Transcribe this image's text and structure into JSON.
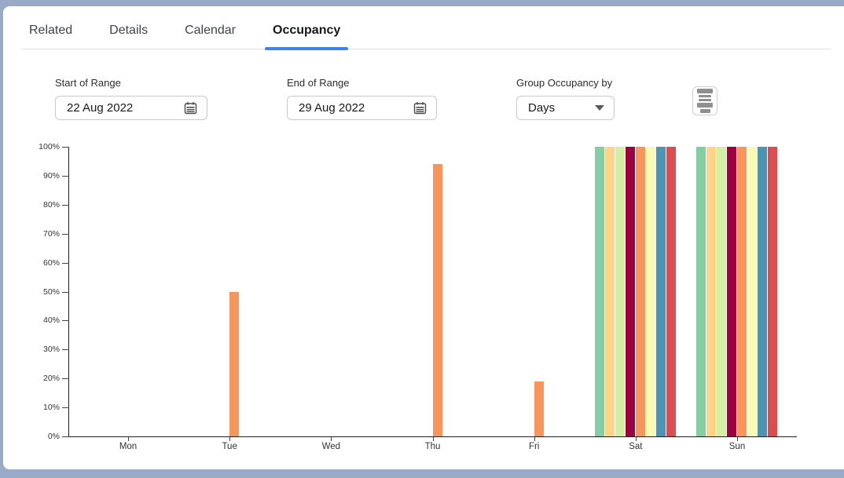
{
  "tabs": [
    {
      "label": "Related",
      "active": false
    },
    {
      "label": "Details",
      "active": false
    },
    {
      "label": "Calendar",
      "active": false
    },
    {
      "label": "Occupancy",
      "active": true
    }
  ],
  "filters": {
    "start": {
      "label": "Start of Range",
      "value": "22 Aug 2022"
    },
    "end": {
      "label": "End of Range",
      "value": "29 Aug 2022"
    },
    "group": {
      "label": "Group Occupancy by",
      "value": "Days"
    }
  },
  "icons": {
    "start_field": "calendar-icon",
    "end_field": "calendar-icon",
    "group_field": "caret-down-icon",
    "chart_menu": "table-list-icon"
  },
  "colors": {
    "background": "#98aac7",
    "active_tab_underline": "#3d82e6",
    "axis": "#1f1f1f"
  },
  "chart_data": {
    "type": "bar",
    "title": "",
    "xlabel": "",
    "ylabel": "",
    "categories": [
      "Mon",
      "Tue",
      "Wed",
      "Thu",
      "Fri",
      "Sat",
      "Sun"
    ],
    "ylim": [
      0,
      100
    ],
    "y_tick_step": 10,
    "y_tick_suffix": "%",
    "grid": false,
    "legend_position": "none",
    "series": [
      {
        "name": "series-green",
        "color": "#84cea4",
        "values": [
          0,
          0,
          0,
          0,
          0,
          100,
          100
        ]
      },
      {
        "name": "series-peach",
        "color": "#ffd388",
        "values": [
          0,
          0,
          0,
          0,
          0,
          100,
          100
        ]
      },
      {
        "name": "series-light-green",
        "color": "#d4eea4",
        "values": [
          0,
          0,
          0,
          0,
          0,
          100,
          100
        ]
      },
      {
        "name": "series-maroon",
        "color": "#9e0142",
        "values": [
          0,
          0,
          0,
          0,
          0,
          100,
          100
        ]
      },
      {
        "name": "series-orange",
        "color": "#f8955b",
        "values": [
          0,
          50,
          0,
          94,
          19,
          100,
          100
        ]
      },
      {
        "name": "series-pale-yellow",
        "color": "#fafbb3",
        "values": [
          0,
          0,
          0,
          0,
          0,
          100,
          100
        ]
      },
      {
        "name": "series-blue",
        "color": "#4b94b6",
        "values": [
          0,
          0,
          0,
          0,
          0,
          100,
          100
        ]
      },
      {
        "name": "series-red",
        "color": "#db4d4f",
        "values": [
          0,
          0,
          0,
          0,
          0,
          100,
          100
        ]
      }
    ]
  }
}
